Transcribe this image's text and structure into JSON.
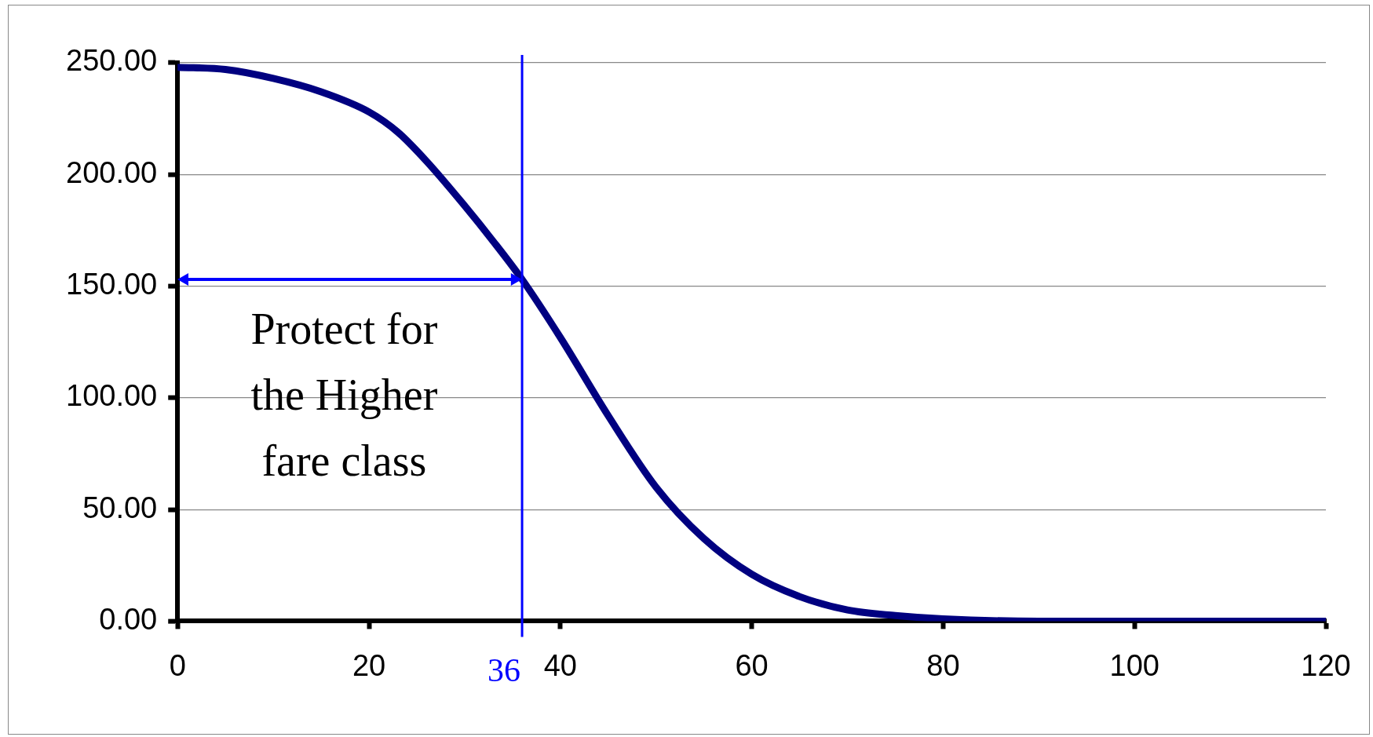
{
  "chart_data": {
    "type": "line",
    "x": [
      0,
      5,
      10,
      15,
      20,
      23,
      26,
      30,
      33,
      36,
      40,
      45,
      50,
      55,
      60,
      65,
      70,
      75,
      80,
      90,
      100,
      110,
      120
    ],
    "series": [
      {
        "color": "#000080",
        "values": [
          248,
          247,
          243,
          237,
          228,
          219,
          206,
          186,
          170,
          153,
          127,
          92,
          60,
          37,
          21,
          11,
          5,
          2.5,
          1,
          0,
          0,
          0,
          0
        ]
      }
    ],
    "xlim": [
      0,
      120
    ],
    "xticks": [
      0,
      20,
      40,
      60,
      80,
      100,
      120
    ],
    "ylim": [
      0,
      250
    ],
    "yticks": [
      {
        "value": 0,
        "label": "0.00"
      },
      {
        "value": 50,
        "label": "50.00"
      },
      {
        "value": 100,
        "label": "100.00"
      },
      {
        "value": 150,
        "label": "150.00"
      },
      {
        "value": 200,
        "label": "200.00"
      },
      {
        "value": 250,
        "label": "250.00"
      }
    ],
    "grid": "y",
    "legend": false,
    "marker": "none",
    "line_style": "solid",
    "ref_lines": [
      {
        "axis": "x",
        "value": 36,
        "label": "36",
        "color": "#0000ff"
      }
    ],
    "annotations": [
      "Protect for the Higher fare class"
    ]
  }
}
